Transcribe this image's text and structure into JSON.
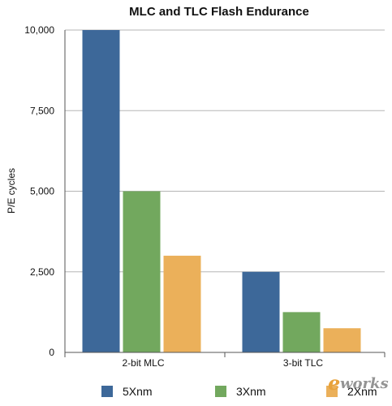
{
  "chart_data": {
    "type": "bar",
    "title": "MLC and TLC Flash Endurance",
    "xlabel": "",
    "ylabel": "P/E cycles",
    "categories": [
      "2-bit MLC",
      "3-bit TLC"
    ],
    "series": [
      {
        "name": "5Xnm",
        "values": [
          10000,
          2500
        ],
        "color": "#3d6899"
      },
      {
        "name": "3Xnm",
        "values": [
          5000,
          1250
        ],
        "color": "#72a85e"
      },
      {
        "name": "2Xnm",
        "values": [
          3000,
          750
        ],
        "color": "#ebb05a"
      }
    ],
    "ylim": [
      0,
      10000
    ],
    "yticks": [
      0,
      2500,
      5000,
      7500,
      10000
    ],
    "ytick_labels": [
      "0",
      "2,500",
      "5,000",
      "7,500",
      "10,000"
    ],
    "grid": true,
    "legend_position": "bottom"
  },
  "watermark": {
    "text": "e-works",
    "colors": {
      "e": "#e8a23a",
      "rest": "#7a7a7a"
    }
  }
}
